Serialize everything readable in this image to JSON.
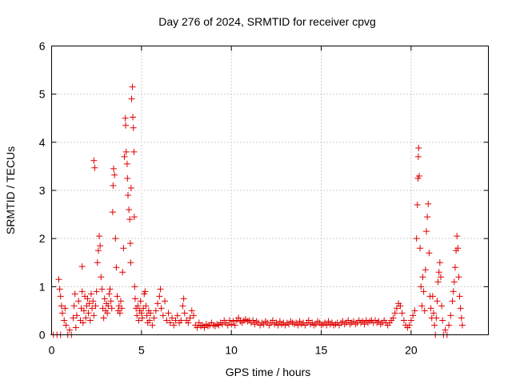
{
  "chart_data": {
    "type": "scatter",
    "title": "Day 276 of 2024, SRMTID for receiver cpvg",
    "xlabel": "GPS time / hours",
    "ylabel": "SRMTID / TECUs",
    "xlim": [
      0,
      24.3
    ],
    "ylim": [
      0,
      6
    ],
    "xticks": [
      0,
      5,
      10,
      15,
      20
    ],
    "xtick_labels": [
      "0",
      "5",
      "10",
      "15",
      "20"
    ],
    "yticks": [
      0,
      1,
      2,
      3,
      4,
      5,
      6
    ],
    "ytick_labels": [
      "0",
      "1",
      "2",
      "3",
      "4",
      "5",
      "6"
    ],
    "grid": true,
    "marker": "+",
    "color": "#e00000",
    "series": [
      {
        "name": "cpvg",
        "points": [
          [
            0.1,
            0.0
          ],
          [
            0.3,
            0.0
          ],
          [
            0.5,
            0.0
          ],
          [
            0.4,
            1.15
          ],
          [
            0.45,
            0.95
          ],
          [
            0.5,
            0.8
          ],
          [
            0.55,
            0.6
          ],
          [
            0.6,
            0.45
          ],
          [
            0.7,
            0.3
          ],
          [
            0.75,
            0.55
          ],
          [
            0.8,
            0.2
          ],
          [
            0.9,
            0.0
          ],
          [
            1.0,
            0.1
          ],
          [
            1.1,
            0.0
          ],
          [
            1.2,
            0.35
          ],
          [
            1.25,
            0.6
          ],
          [
            1.3,
            0.85
          ],
          [
            1.35,
            0.15
          ],
          [
            1.4,
            0.4
          ],
          [
            1.5,
            0.7
          ],
          [
            1.6,
            0.3
          ],
          [
            1.65,
            0.55
          ],
          [
            1.7,
            0.9
          ],
          [
            1.7,
            1.42
          ],
          [
            1.75,
            0.25
          ],
          [
            1.8,
            0.5
          ],
          [
            1.85,
            0.8
          ],
          [
            1.9,
            0.35
          ],
          [
            1.95,
            0.6
          ],
          [
            2.0,
            0.75
          ],
          [
            2.05,
            0.45
          ],
          [
            2.1,
            0.65
          ],
          [
            2.15,
            0.3
          ],
          [
            2.2,
            0.85
          ],
          [
            2.25,
            0.55
          ],
          [
            2.3,
            0.7
          ],
          [
            2.35,
            0.4
          ],
          [
            2.35,
            3.62
          ],
          [
            2.4,
            3.47
          ],
          [
            2.45,
            0.6
          ],
          [
            2.5,
            0.9
          ],
          [
            2.55,
            1.5
          ],
          [
            2.6,
            1.75
          ],
          [
            2.65,
            2.05
          ],
          [
            2.7,
            1.85
          ],
          [
            2.75,
            1.2
          ],
          [
            2.8,
            0.95
          ],
          [
            2.85,
            0.55
          ],
          [
            2.9,
            0.35
          ],
          [
            2.95,
            0.75
          ],
          [
            3.0,
            0.5
          ],
          [
            3.05,
            0.65
          ],
          [
            3.1,
            0.45
          ],
          [
            3.15,
            0.6
          ],
          [
            3.2,
            0.85
          ],
          [
            3.25,
            0.95
          ],
          [
            3.3,
            0.7
          ],
          [
            3.35,
            0.55
          ],
          [
            3.4,
            2.55
          ],
          [
            3.42,
            3.1
          ],
          [
            3.45,
            3.45
          ],
          [
            3.5,
            3.32
          ],
          [
            3.55,
            2.0
          ],
          [
            3.6,
            1.4
          ],
          [
            3.65,
            0.8
          ],
          [
            3.7,
            0.5
          ],
          [
            3.75,
            0.6
          ],
          [
            3.8,
            0.45
          ],
          [
            3.85,
            0.7
          ],
          [
            3.9,
            0.55
          ],
          [
            3.95,
            1.3
          ],
          [
            4.0,
            1.8
          ],
          [
            4.05,
            3.7
          ],
          [
            4.1,
            4.5
          ],
          [
            4.12,
            4.35
          ],
          [
            4.15,
            3.8
          ],
          [
            4.2,
            3.55
          ],
          [
            4.22,
            3.25
          ],
          [
            4.25,
            2.9
          ],
          [
            4.3,
            2.6
          ],
          [
            4.35,
            2.4
          ],
          [
            4.38,
            1.9
          ],
          [
            4.4,
            1.5
          ],
          [
            4.42,
            3.05
          ],
          [
            4.45,
            4.9
          ],
          [
            4.5,
            5.15
          ],
          [
            4.52,
            4.52
          ],
          [
            4.55,
            4.3
          ],
          [
            4.58,
            3.8
          ],
          [
            4.6,
            2.45
          ],
          [
            4.62,
            1.0
          ],
          [
            4.65,
            0.75
          ],
          [
            4.7,
            0.55
          ],
          [
            4.75,
            0.4
          ],
          [
            4.8,
            0.6
          ],
          [
            4.85,
            0.3
          ],
          [
            4.9,
            0.5
          ],
          [
            4.95,
            0.7
          ],
          [
            5.0,
            0.45
          ],
          [
            5.05,
            0.35
          ],
          [
            5.1,
            0.55
          ],
          [
            5.15,
            0.85
          ],
          [
            5.2,
            0.9
          ],
          [
            5.25,
            0.6
          ],
          [
            5.3,
            0.4
          ],
          [
            5.35,
            0.25
          ],
          [
            5.4,
            0.5
          ],
          [
            5.45,
            0.3
          ],
          [
            5.5,
            0.45
          ],
          [
            5.6,
            0.2
          ],
          [
            5.7,
            0.35
          ],
          [
            5.8,
            0.5
          ],
          [
            5.9,
            0.65
          ],
          [
            6.0,
            0.8
          ],
          [
            6.05,
            0.95
          ],
          [
            6.1,
            0.55
          ],
          [
            6.2,
            0.4
          ],
          [
            6.3,
            0.7
          ],
          [
            6.4,
            0.3
          ],
          [
            6.5,
            0.45
          ],
          [
            6.6,
            0.25
          ],
          [
            6.7,
            0.35
          ],
          [
            6.8,
            0.2
          ],
          [
            6.9,
            0.3
          ],
          [
            7.0,
            0.4
          ],
          [
            7.1,
            0.25
          ],
          [
            7.2,
            0.3
          ],
          [
            7.3,
            0.6
          ],
          [
            7.35,
            0.75
          ],
          [
            7.4,
            0.45
          ],
          [
            7.5,
            0.3
          ],
          [
            7.6,
            0.25
          ],
          [
            7.7,
            0.35
          ],
          [
            7.8,
            0.5
          ],
          [
            7.9,
            0.4
          ],
          [
            8.0,
            0.2
          ],
          [
            8.1,
            0.15
          ],
          [
            8.2,
            0.25
          ],
          [
            8.3,
            0.18
          ],
          [
            8.4,
            0.2
          ],
          [
            8.5,
            0.15
          ],
          [
            8.6,
            0.22
          ],
          [
            8.7,
            0.18
          ],
          [
            8.8,
            0.2
          ],
          [
            8.9,
            0.25
          ],
          [
            9.0,
            0.2
          ],
          [
            9.1,
            0.18
          ],
          [
            9.2,
            0.22
          ],
          [
            9.3,
            0.2
          ],
          [
            9.4,
            0.25
          ],
          [
            9.5,
            0.22
          ],
          [
            9.6,
            0.3
          ],
          [
            9.7,
            0.25
          ],
          [
            9.8,
            0.2
          ],
          [
            9.9,
            0.3
          ],
          [
            10.0,
            0.22
          ],
          [
            10.1,
            0.28
          ],
          [
            10.2,
            0.2
          ],
          [
            10.3,
            0.3
          ],
          [
            10.4,
            0.35
          ],
          [
            10.5,
            0.28
          ],
          [
            10.6,
            0.25
          ],
          [
            10.7,
            0.3
          ],
          [
            10.8,
            0.32
          ],
          [
            10.9,
            0.28
          ],
          [
            11.0,
            0.3
          ],
          [
            11.1,
            0.25
          ],
          [
            11.2,
            0.3
          ],
          [
            11.3,
            0.22
          ],
          [
            11.4,
            0.28
          ],
          [
            11.5,
            0.25
          ],
          [
            11.6,
            0.2
          ],
          [
            11.7,
            0.25
          ],
          [
            11.8,
            0.22
          ],
          [
            11.9,
            0.28
          ],
          [
            12.0,
            0.25
          ],
          [
            12.1,
            0.2
          ],
          [
            12.2,
            0.25
          ],
          [
            12.3,
            0.3
          ],
          [
            12.4,
            0.22
          ],
          [
            12.5,
            0.25
          ],
          [
            12.6,
            0.2
          ],
          [
            12.7,
            0.28
          ],
          [
            12.8,
            0.22
          ],
          [
            12.9,
            0.25
          ],
          [
            13.0,
            0.2
          ],
          [
            13.1,
            0.25
          ],
          [
            13.2,
            0.22
          ],
          [
            13.3,
            0.28
          ],
          [
            13.4,
            0.25
          ],
          [
            13.5,
            0.22
          ],
          [
            13.6,
            0.25
          ],
          [
            13.7,
            0.2
          ],
          [
            13.8,
            0.28
          ],
          [
            13.9,
            0.22
          ],
          [
            14.0,
            0.25
          ],
          [
            14.1,
            0.2
          ],
          [
            14.2,
            0.25
          ],
          [
            14.3,
            0.3
          ],
          [
            14.4,
            0.22
          ],
          [
            14.5,
            0.25
          ],
          [
            14.6,
            0.2
          ],
          [
            14.7,
            0.22
          ],
          [
            14.8,
            0.28
          ],
          [
            14.9,
            0.25
          ],
          [
            15.0,
            0.2
          ],
          [
            15.1,
            0.22
          ],
          [
            15.2,
            0.25
          ],
          [
            15.3,
            0.2
          ],
          [
            15.4,
            0.28
          ],
          [
            15.5,
            0.22
          ],
          [
            15.6,
            0.25
          ],
          [
            15.7,
            0.2
          ],
          [
            15.8,
            0.22
          ],
          [
            15.9,
            0.25
          ],
          [
            16.0,
            0.2
          ],
          [
            16.1,
            0.25
          ],
          [
            16.2,
            0.28
          ],
          [
            16.3,
            0.22
          ],
          [
            16.4,
            0.25
          ],
          [
            16.5,
            0.3
          ],
          [
            16.6,
            0.22
          ],
          [
            16.7,
            0.25
          ],
          [
            16.8,
            0.28
          ],
          [
            16.9,
            0.22
          ],
          [
            17.0,
            0.25
          ],
          [
            17.1,
            0.3
          ],
          [
            17.2,
            0.25
          ],
          [
            17.3,
            0.28
          ],
          [
            17.4,
            0.22
          ],
          [
            17.5,
            0.3
          ],
          [
            17.6,
            0.25
          ],
          [
            17.7,
            0.28
          ],
          [
            17.8,
            0.3
          ],
          [
            17.9,
            0.25
          ],
          [
            18.0,
            0.3
          ],
          [
            18.1,
            0.25
          ],
          [
            18.2,
            0.28
          ],
          [
            18.3,
            0.22
          ],
          [
            18.4,
            0.25
          ],
          [
            18.5,
            0.3
          ],
          [
            18.6,
            0.25
          ],
          [
            18.7,
            0.2
          ],
          [
            18.8,
            0.25
          ],
          [
            18.9,
            0.3
          ],
          [
            19.0,
            0.35
          ],
          [
            19.1,
            0.45
          ],
          [
            19.2,
            0.55
          ],
          [
            19.3,
            0.65
          ],
          [
            19.4,
            0.6
          ],
          [
            19.5,
            0.45
          ],
          [
            19.6,
            0.3
          ],
          [
            19.7,
            0.2
          ],
          [
            19.8,
            0.15
          ],
          [
            19.9,
            0.2
          ],
          [
            20.0,
            0.3
          ],
          [
            20.1,
            0.4
          ],
          [
            20.2,
            0.5
          ],
          [
            20.3,
            2.0
          ],
          [
            20.35,
            2.7
          ],
          [
            20.38,
            3.25
          ],
          [
            20.4,
            3.7
          ],
          [
            20.42,
            3.88
          ],
          [
            20.45,
            3.3
          ],
          [
            20.5,
            1.8
          ],
          [
            20.55,
            1.0
          ],
          [
            20.6,
            0.6
          ],
          [
            20.65,
            1.2
          ],
          [
            20.7,
            0.9
          ],
          [
            20.75,
            0.5
          ],
          [
            20.8,
            1.35
          ],
          [
            20.85,
            2.15
          ],
          [
            20.9,
            2.45
          ],
          [
            20.95,
            2.72
          ],
          [
            21.0,
            1.7
          ],
          [
            21.05,
            0.8
          ],
          [
            21.1,
            0.55
          ],
          [
            21.15,
            0.35
          ],
          [
            21.2,
            0.8
          ],
          [
            21.25,
            0.45
          ],
          [
            21.3,
            0.2
          ],
          [
            21.35,
            0.0
          ],
          [
            21.4,
            0.35
          ],
          [
            21.45,
            0.7
          ],
          [
            21.5,
            1.1
          ],
          [
            21.55,
            1.3
          ],
          [
            21.6,
            1.5
          ],
          [
            21.65,
            1.2
          ],
          [
            21.7,
            0.6
          ],
          [
            21.75,
            0.3
          ],
          [
            21.8,
            0.0
          ],
          [
            21.9,
            0.1
          ],
          [
            22.0,
            0.0
          ],
          [
            22.1,
            0.2
          ],
          [
            22.2,
            0.4
          ],
          [
            22.3,
            0.7
          ],
          [
            22.35,
            0.9
          ],
          [
            22.4,
            1.1
          ],
          [
            22.45,
            1.4
          ],
          [
            22.5,
            1.75
          ],
          [
            22.55,
            2.05
          ],
          [
            22.6,
            1.8
          ],
          [
            22.65,
            1.2
          ],
          [
            22.7,
            0.8
          ],
          [
            22.75,
            0.55
          ],
          [
            22.8,
            0.35
          ],
          [
            22.85,
            0.2
          ]
        ]
      }
    ]
  }
}
